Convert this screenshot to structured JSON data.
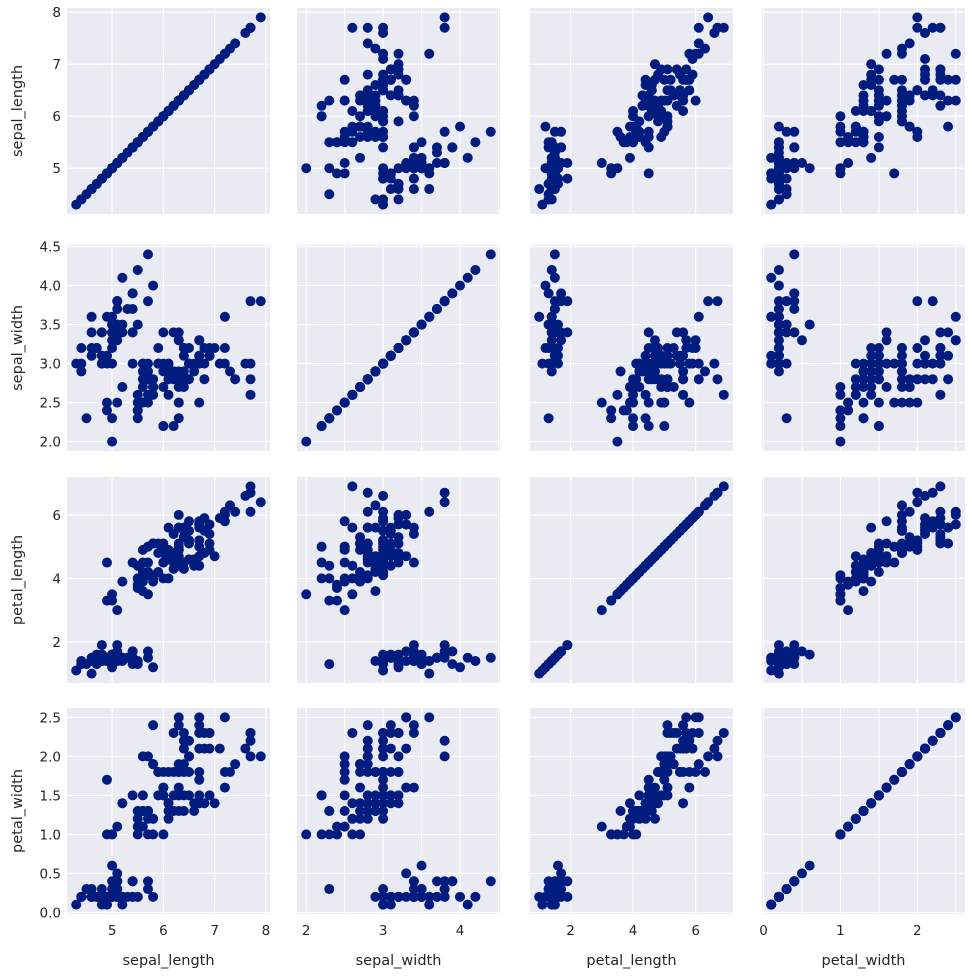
{
  "variables": [
    "sepal_length",
    "sepal_width",
    "petal_length",
    "petal_width"
  ],
  "ticks": {
    "sepal_length": [
      5,
      6,
      7,
      8
    ],
    "sepal_width": [
      2.0,
      2.5,
      3.0,
      3.5,
      4.0,
      4.5
    ],
    "petal_length": [
      2,
      4,
      6
    ],
    "petal_width": [
      0.0,
      0.5,
      1.0,
      1.5,
      2.0,
      2.5
    ]
  },
  "x_ticks": {
    "sepal_length": [
      "5",
      "6",
      "7",
      "8"
    ],
    "sepal_width": [
      "2",
      "3",
      "4"
    ],
    "petal_length": [
      "2",
      "4",
      "6"
    ],
    "petal_width": [
      "0",
      "1",
      "2"
    ]
  },
  "y_ticks": {
    "sepal_length": [
      "5",
      "6",
      "7",
      "8"
    ],
    "sepal_width": [
      "2.0",
      "2.5",
      "3.0",
      "3.5",
      "4.0",
      "4.5"
    ],
    "petal_length": [
      "2",
      "4",
      "6"
    ],
    "petal_width": [
      "0.0",
      "0.5",
      "1.0",
      "1.5",
      "2.0",
      "2.5"
    ]
  },
  "ranges": {
    "sepal_length": [
      4.12,
      8.08
    ],
    "sepal_width": [
      1.88,
      4.52
    ],
    "petal_length": [
      0.705,
      7.195
    ],
    "petal_width": [
      -0.02,
      2.62
    ]
  },
  "chart_data": {
    "type": "scatter",
    "layout": "pair-grid",
    "grid": true,
    "marker_color": "#001c7f",
    "background_color": "#eaeaf2",
    "columns": [
      "sepal_length",
      "sepal_width",
      "petal_length",
      "petal_width"
    ],
    "points": [
      [
        5.1,
        3.5,
        1.4,
        0.2
      ],
      [
        4.9,
        3.0,
        1.4,
        0.2
      ],
      [
        4.7,
        3.2,
        1.3,
        0.2
      ],
      [
        4.6,
        3.1,
        1.5,
        0.2
      ],
      [
        5.0,
        3.6,
        1.4,
        0.2
      ],
      [
        5.4,
        3.9,
        1.7,
        0.4
      ],
      [
        4.6,
        3.4,
        1.4,
        0.3
      ],
      [
        5.0,
        3.4,
        1.5,
        0.2
      ],
      [
        4.4,
        2.9,
        1.4,
        0.2
      ],
      [
        4.9,
        3.1,
        1.5,
        0.1
      ],
      [
        5.4,
        3.7,
        1.5,
        0.2
      ],
      [
        4.8,
        3.4,
        1.6,
        0.2
      ],
      [
        4.8,
        3.0,
        1.4,
        0.1
      ],
      [
        4.3,
        3.0,
        1.1,
        0.1
      ],
      [
        5.8,
        4.0,
        1.2,
        0.2
      ],
      [
        5.7,
        4.4,
        1.5,
        0.4
      ],
      [
        5.4,
        3.9,
        1.3,
        0.4
      ],
      [
        5.1,
        3.5,
        1.4,
        0.3
      ],
      [
        5.7,
        3.8,
        1.7,
        0.3
      ],
      [
        5.1,
        3.8,
        1.5,
        0.3
      ],
      [
        5.4,
        3.4,
        1.7,
        0.2
      ],
      [
        5.1,
        3.7,
        1.5,
        0.4
      ],
      [
        4.6,
        3.6,
        1.0,
        0.2
      ],
      [
        5.1,
        3.3,
        1.7,
        0.5
      ],
      [
        4.8,
        3.4,
        1.9,
        0.2
      ],
      [
        5.0,
        3.0,
        1.6,
        0.2
      ],
      [
        5.0,
        3.4,
        1.6,
        0.4
      ],
      [
        5.2,
        3.5,
        1.5,
        0.2
      ],
      [
        5.2,
        3.4,
        1.4,
        0.2
      ],
      [
        4.7,
        3.2,
        1.6,
        0.2
      ],
      [
        4.8,
        3.1,
        1.6,
        0.2
      ],
      [
        5.4,
        3.4,
        1.5,
        0.4
      ],
      [
        5.2,
        4.1,
        1.5,
        0.1
      ],
      [
        5.5,
        4.2,
        1.4,
        0.2
      ],
      [
        4.9,
        3.1,
        1.5,
        0.2
      ],
      [
        5.0,
        3.2,
        1.2,
        0.2
      ],
      [
        5.5,
        3.5,
        1.3,
        0.2
      ],
      [
        4.9,
        3.6,
        1.4,
        0.1
      ],
      [
        4.4,
        3.0,
        1.3,
        0.2
      ],
      [
        5.1,
        3.4,
        1.5,
        0.2
      ],
      [
        5.0,
        3.5,
        1.3,
        0.3
      ],
      [
        4.5,
        2.3,
        1.3,
        0.3
      ],
      [
        4.4,
        3.2,
        1.3,
        0.2
      ],
      [
        5.0,
        3.5,
        1.6,
        0.6
      ],
      [
        5.1,
        3.8,
        1.9,
        0.4
      ],
      [
        4.8,
        3.0,
        1.4,
        0.3
      ],
      [
        5.1,
        3.8,
        1.6,
        0.2
      ],
      [
        4.6,
        3.2,
        1.4,
        0.2
      ],
      [
        5.3,
        3.7,
        1.5,
        0.2
      ],
      [
        5.0,
        3.3,
        1.4,
        0.2
      ],
      [
        7.0,
        3.2,
        4.7,
        1.4
      ],
      [
        6.4,
        3.2,
        4.5,
        1.5
      ],
      [
        6.9,
        3.1,
        4.9,
        1.5
      ],
      [
        5.5,
        2.3,
        4.0,
        1.3
      ],
      [
        6.5,
        2.8,
        4.6,
        1.5
      ],
      [
        5.7,
        2.8,
        4.5,
        1.3
      ],
      [
        6.3,
        3.3,
        4.7,
        1.6
      ],
      [
        4.9,
        2.4,
        3.3,
        1.0
      ],
      [
        6.6,
        2.9,
        4.6,
        1.3
      ],
      [
        5.2,
        2.7,
        3.9,
        1.4
      ],
      [
        5.0,
        2.0,
        3.5,
        1.0
      ],
      [
        5.9,
        3.0,
        4.2,
        1.5
      ],
      [
        6.0,
        2.2,
        4.0,
        1.0
      ],
      [
        6.1,
        2.9,
        4.7,
        1.4
      ],
      [
        5.6,
        2.9,
        3.6,
        1.3
      ],
      [
        6.7,
        3.1,
        4.4,
        1.4
      ],
      [
        5.6,
        3.0,
        4.5,
        1.5
      ],
      [
        5.8,
        2.7,
        4.1,
        1.0
      ],
      [
        6.2,
        2.2,
        4.5,
        1.5
      ],
      [
        5.6,
        2.5,
        3.9,
        1.1
      ],
      [
        5.9,
        3.2,
        4.8,
        1.8
      ],
      [
        6.1,
        2.8,
        4.0,
        1.3
      ],
      [
        6.3,
        2.5,
        4.9,
        1.5
      ],
      [
        6.1,
        2.8,
        4.7,
        1.2
      ],
      [
        6.4,
        2.9,
        4.3,
        1.3
      ],
      [
        6.6,
        3.0,
        4.4,
        1.4
      ],
      [
        6.8,
        2.8,
        4.8,
        1.4
      ],
      [
        6.7,
        3.0,
        5.0,
        1.7
      ],
      [
        6.0,
        2.9,
        4.5,
        1.5
      ],
      [
        5.7,
        2.6,
        3.5,
        1.0
      ],
      [
        5.5,
        2.4,
        3.8,
        1.1
      ],
      [
        5.5,
        2.4,
        3.7,
        1.0
      ],
      [
        5.8,
        2.7,
        3.9,
        1.2
      ],
      [
        6.0,
        2.7,
        5.1,
        1.6
      ],
      [
        5.4,
        3.0,
        4.5,
        1.5
      ],
      [
        6.0,
        3.4,
        4.5,
        1.6
      ],
      [
        6.7,
        3.1,
        4.7,
        1.5
      ],
      [
        6.3,
        2.3,
        4.4,
        1.3
      ],
      [
        5.6,
        3.0,
        4.1,
        1.3
      ],
      [
        5.5,
        2.5,
        4.0,
        1.3
      ],
      [
        5.5,
        2.6,
        4.4,
        1.2
      ],
      [
        6.1,
        3.0,
        4.6,
        1.4
      ],
      [
        5.8,
        2.6,
        4.0,
        1.2
      ],
      [
        5.0,
        2.3,
        3.3,
        1.0
      ],
      [
        5.6,
        2.7,
        4.2,
        1.3
      ],
      [
        5.7,
        3.0,
        4.2,
        1.2
      ],
      [
        5.7,
        2.9,
        4.2,
        1.3
      ],
      [
        6.2,
        2.9,
        4.3,
        1.3
      ],
      [
        5.1,
        2.5,
        3.0,
        1.1
      ],
      [
        5.7,
        2.8,
        4.1,
        1.3
      ],
      [
        6.3,
        3.3,
        6.0,
        2.5
      ],
      [
        5.8,
        2.7,
        5.1,
        1.9
      ],
      [
        7.1,
        3.0,
        5.9,
        2.1
      ],
      [
        6.3,
        2.9,
        5.6,
        1.8
      ],
      [
        6.5,
        3.0,
        5.8,
        2.2
      ],
      [
        7.6,
        3.0,
        6.6,
        2.1
      ],
      [
        4.9,
        2.5,
        4.5,
        1.7
      ],
      [
        7.3,
        2.9,
        6.3,
        1.8
      ],
      [
        6.7,
        2.5,
        5.8,
        1.8
      ],
      [
        7.2,
        3.6,
        6.1,
        2.5
      ],
      [
        6.5,
        3.2,
        5.1,
        2.0
      ],
      [
        6.4,
        2.7,
        5.3,
        1.9
      ],
      [
        6.8,
        3.0,
        5.5,
        2.1
      ],
      [
        5.7,
        2.5,
        5.0,
        2.0
      ],
      [
        5.8,
        2.8,
        5.1,
        2.4
      ],
      [
        6.4,
        3.2,
        5.3,
        2.3
      ],
      [
        6.5,
        3.0,
        5.5,
        1.8
      ],
      [
        7.7,
        3.8,
        6.7,
        2.2
      ],
      [
        7.7,
        2.6,
        6.9,
        2.3
      ],
      [
        6.0,
        2.2,
        5.0,
        1.5
      ],
      [
        6.9,
        3.2,
        5.7,
        2.3
      ],
      [
        5.6,
        2.8,
        4.9,
        2.0
      ],
      [
        7.7,
        2.8,
        6.7,
        2.0
      ],
      [
        6.3,
        2.7,
        4.9,
        1.8
      ],
      [
        6.7,
        3.3,
        5.7,
        2.1
      ],
      [
        7.2,
        3.2,
        6.0,
        1.8
      ],
      [
        6.2,
        2.8,
        4.8,
        1.8
      ],
      [
        6.1,
        3.0,
        4.9,
        1.8
      ],
      [
        6.4,
        2.8,
        5.6,
        2.1
      ],
      [
        7.2,
        3.0,
        5.8,
        1.6
      ],
      [
        7.4,
        2.8,
        6.1,
        1.9
      ],
      [
        7.9,
        3.8,
        6.4,
        2.0
      ],
      [
        6.4,
        2.8,
        5.6,
        2.2
      ],
      [
        6.3,
        2.8,
        5.1,
        1.5
      ],
      [
        6.1,
        2.6,
        5.6,
        1.4
      ],
      [
        7.7,
        3.0,
        6.1,
        2.3
      ],
      [
        6.3,
        3.4,
        5.6,
        2.4
      ],
      [
        6.4,
        3.1,
        5.5,
        1.8
      ],
      [
        6.0,
        3.0,
        4.8,
        1.8
      ],
      [
        6.9,
        3.1,
        5.4,
        2.1
      ],
      [
        6.7,
        3.1,
        5.6,
        2.4
      ],
      [
        6.9,
        3.1,
        5.1,
        2.3
      ],
      [
        5.8,
        2.7,
        5.1,
        1.9
      ],
      [
        6.8,
        3.2,
        5.9,
        2.3
      ],
      [
        6.7,
        3.3,
        5.7,
        2.5
      ],
      [
        6.7,
        3.0,
        5.2,
        2.3
      ],
      [
        6.3,
        2.5,
        5.0,
        1.9
      ],
      [
        6.5,
        3.0,
        5.2,
        2.0
      ],
      [
        6.2,
        3.4,
        5.4,
        2.3
      ],
      [
        5.9,
        3.0,
        5.1,
        1.8
      ]
    ]
  }
}
